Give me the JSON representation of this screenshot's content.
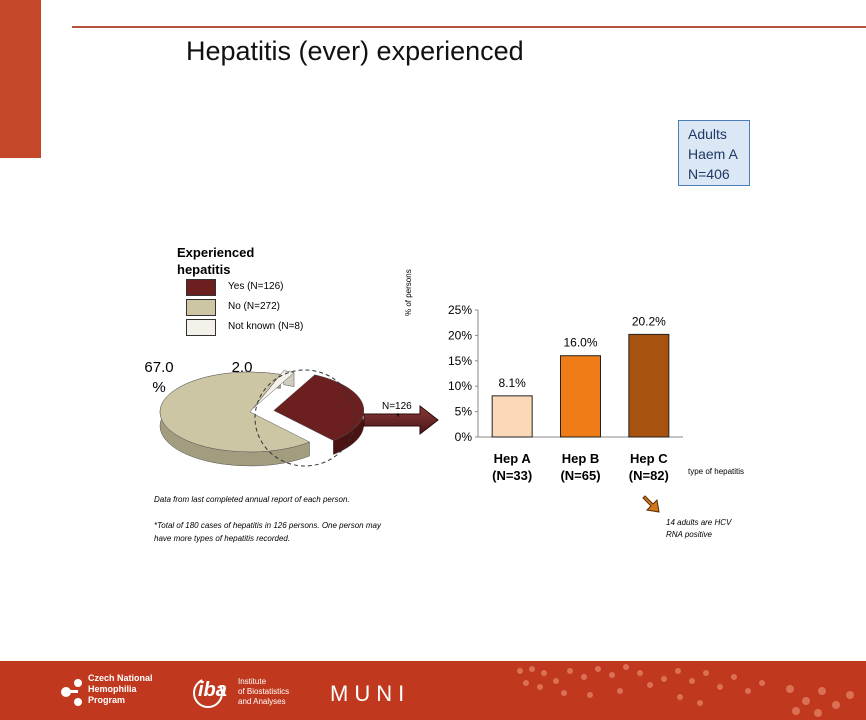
{
  "slide": {
    "title": "Hepatitis (ever) experienced",
    "info_box": [
      "Adults",
      "Haem A",
      "N=406"
    ],
    "note_1": "Data from last completed annual report of each person.",
    "note_2": "*Total of 180 cases of hepatitis in 126 persons. One person may have more types of hepatitis recorded.",
    "hcv_note": "14 adults are HCV RNA positive",
    "arrow_label": "N=126",
    "arrow_sub": "*"
  },
  "colors": {
    "accent": "#c4472a",
    "footer": "#c0391f",
    "yes": "#6b1f1f",
    "no": "#cdc6a5",
    "not_known": "#f3f1ea",
    "hep_a": "#fbd9b8",
    "hep_b": "#ef7c17",
    "hep_c": "#a8520f"
  },
  "chart_data": [
    {
      "type": "pie",
      "title": "Experienced hepatitis",
      "slices": [
        {
          "name": "Yes (N=126)",
          "value": 31.0
        },
        {
          "name": "No (N=272)",
          "value": 67.0
        },
        {
          "name": "Not known (N=8)",
          "value": 2.0
        }
      ],
      "labels_shown": [
        "67.0 %",
        "2.0 %"
      ],
      "legend_position": "top"
    },
    {
      "type": "bar",
      "categories": [
        "Hep A (N=33)",
        "Hep B (N=65)",
        "Hep C (N=82)"
      ],
      "category_lines": [
        [
          "Hep A",
          "(N=33)"
        ],
        [
          "Hep B",
          "(N=65)"
        ],
        [
          "Hep C",
          "(N=82)"
        ]
      ],
      "values": [
        8.1,
        16.0,
        20.2
      ],
      "data_labels": [
        "8.1%",
        "16.0%",
        "20.2%"
      ],
      "xlabel": "type of hepatitis",
      "ylabel": "% of persons",
      "ylim": [
        0,
        25
      ],
      "yticks": [
        "0%",
        "5%",
        "10%",
        "15%",
        "20%",
        "25%"
      ],
      "grid": false
    }
  ],
  "footer": {
    "logo_1": [
      "Czech National",
      "Hemophilia",
      "Program"
    ],
    "logo_2_mark": "iba",
    "logo_2_text": [
      "Institute",
      "of Biostatistics",
      "and Analyses"
    ],
    "logo_3": "MUNI"
  }
}
